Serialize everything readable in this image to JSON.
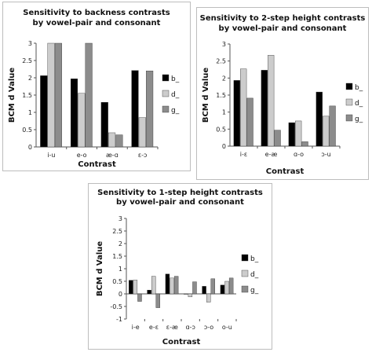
{
  "chart_data": [
    {
      "type": "bar",
      "title_lines": [
        "Sensitivity to backness contrasts",
        "by vowel-pair and consonant"
      ],
      "xlabel": "Contrast",
      "ylabel": "BCM d Value",
      "ylim": [
        0,
        3
      ],
      "yticks": [
        "0",
        "0.5",
        "1",
        "1.5",
        "2",
        "2.5",
        "3"
      ],
      "categories": [
        "i-u",
        "e-o",
        "æ-ɑ",
        "ɛ-ɔ"
      ],
      "legend_position": "right",
      "series": [
        {
          "name": "b_",
          "color": "#000000",
          "values": [
            2.06,
            1.97,
            1.29,
            2.21
          ]
        },
        {
          "name": "d_",
          "color": "#cccccc",
          "values": [
            3.0,
            1.55,
            0.41,
            0.85
          ]
        },
        {
          "name": "g_",
          "color": "#8c8c8c",
          "values": [
            3.0,
            3.0,
            0.35,
            2.2
          ]
        }
      ]
    },
    {
      "type": "bar",
      "title_lines": [
        "Sensitivity to 2-step height contrasts",
        "by vowel-pair and consonant"
      ],
      "xlabel": "Contrast",
      "ylabel": "BCM d Value",
      "ylim": [
        0,
        3
      ],
      "yticks": [
        "0",
        "0.5",
        "1",
        "1.5",
        "2",
        "2.5",
        "3"
      ],
      "categories": [
        "i-ɛ",
        "e-æ",
        "ɑ-o",
        "ɔ-u"
      ],
      "legend_position": "right",
      "series": [
        {
          "name": "b_",
          "color": "#000000",
          "values": [
            1.93,
            2.23,
            0.69,
            1.59
          ]
        },
        {
          "name": "d_",
          "color": "#cccccc",
          "values": [
            2.27,
            2.67,
            0.74,
            0.88
          ]
        },
        {
          "name": "g_",
          "color": "#8c8c8c",
          "values": [
            1.41,
            0.47,
            0.13,
            1.18
          ]
        }
      ]
    },
    {
      "type": "bar",
      "title_lines": [
        "Sensitivity to 1-step height contrasts",
        "by vowel-pair and consonant"
      ],
      "xlabel": "Contrast",
      "ylabel": "BCM d Value",
      "ylim": [
        -1,
        3
      ],
      "yticks": [
        "-1",
        "-0.5",
        "0",
        "0.5",
        "1",
        "1.5",
        "2",
        "2.5",
        "3"
      ],
      "categories": [
        "i-e",
        "e-ɛ",
        "ɛ-æ",
        "ɑ-ɔ",
        "ɔ-o",
        "o-u"
      ],
      "legend_position": "right",
      "series": [
        {
          "name": "b_",
          "color": "#000000",
          "values": [
            0.54,
            0.15,
            0.79,
            0.0,
            0.3,
            0.35
          ]
        },
        {
          "name": "d_",
          "color": "#cccccc",
          "values": [
            0.55,
            0.7,
            0.63,
            -0.12,
            -0.33,
            0.5
          ]
        },
        {
          "name": "g_",
          "color": "#8c8c8c",
          "values": [
            -0.3,
            -0.55,
            0.7,
            0.48,
            0.6,
            0.63
          ]
        }
      ]
    }
  ]
}
